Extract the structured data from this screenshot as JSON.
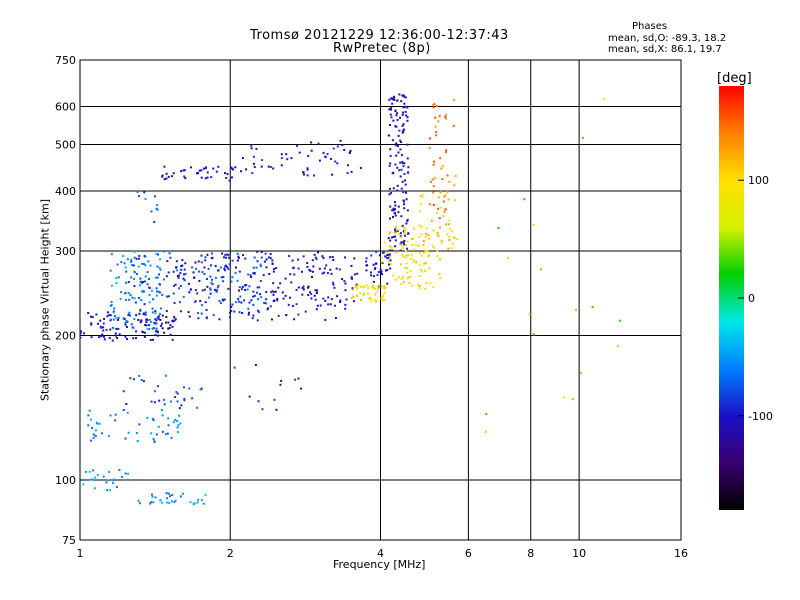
{
  "chart_data": {
    "type": "scatter",
    "title": "Tromsø 20121229 12:36:00-12:37:43",
    "subtitle": "RwPretec (8p)",
    "xlabel": "Frequency [MHz]",
    "ylabel": "Stationary phase Virtual Height [km]",
    "x_scale": "log",
    "y_scale": "log",
    "xlim": [
      1,
      16
    ],
    "ylim": [
      75,
      750
    ],
    "x_ticks": [
      1,
      2,
      4,
      6,
      8,
      10,
      16
    ],
    "y_ticks": [
      75,
      100,
      200,
      300,
      400,
      500,
      600,
      750
    ],
    "grid": true,
    "stats_title": "Phases",
    "stats_o": "mean, sd,O: -89.3, 18.2",
    "stats_x": "mean, sd,X:  86.1, 19.7",
    "colorbar": {
      "label": "[deg]",
      "range": [
        -180,
        180
      ],
      "ticks": [
        100,
        0,
        -100
      ],
      "colors": [
        "#000000",
        "#3a0070",
        "#1a10c8",
        "#0080ff",
        "#00e8e8",
        "#00d000",
        "#d8f000",
        "#ffe000",
        "#ff8000",
        "#ff0000"
      ]
    },
    "clusters": [
      {
        "x": [
          1.0,
          1.55
        ],
        "y": [
          195,
          225
        ],
        "phase": -110,
        "n": 110
      },
      {
        "x": [
          1.15,
          1.45
        ],
        "y": [
          205,
          300
        ],
        "phase": -55,
        "n": 90
      },
      {
        "x": [
          1.25,
          2.4
        ],
        "y": [
          220,
          300
        ],
        "phase": -80,
        "n": 160
      },
      {
        "x": [
          1.55,
          3.4
        ],
        "y": [
          215,
          300
        ],
        "phase": -105,
        "n": 150
      },
      {
        "x": [
          2.3,
          3.6
        ],
        "y": [
          230,
          295
        ],
        "phase": -105,
        "n": 70
      },
      {
        "x": [
          1.45,
          2.1
        ],
        "y": [
          420,
          450
        ],
        "phase": -110,
        "n": 40
      },
      {
        "x": [
          2.1,
          3.7
        ],
        "y": [
          430,
          510
        ],
        "phase": -100,
        "n": 55
      },
      {
        "x": [
          1.3,
          1.45
        ],
        "y": [
          340,
          400
        ],
        "phase": -70,
        "n": 10
      },
      {
        "x": [
          4.15,
          4.55
        ],
        "y": [
          300,
          640
        ],
        "phase": -110,
        "n": 150
      },
      {
        "x": [
          3.7,
          4.2
        ],
        "y": [
          250,
          300
        ],
        "phase": -100,
        "n": 40
      },
      {
        "x": [
          3.5,
          4.1
        ],
        "y": [
          235,
          255
        ],
        "phase": 100,
        "n": 45
      },
      {
        "x": [
          4.0,
          5.3
        ],
        "y": [
          250,
          340
        ],
        "phase": 100,
        "n": 80
      },
      {
        "x": [
          4.8,
          5.7
        ],
        "y": [
          300,
          400
        ],
        "phase": 110,
        "n": 40
      },
      {
        "x": [
          5.0,
          5.7
        ],
        "y": [
          340,
          620
        ],
        "phase": 140,
        "n": 45
      },
      {
        "x": [
          4.4,
          5.0
        ],
        "y": [
          270,
          330
        ],
        "phase": 60,
        "n": 20
      },
      {
        "x": [
          1.0,
          1.6
        ],
        "y": [
          120,
          140
        ],
        "phase": -60,
        "n": 50
      },
      {
        "x": [
          1.2,
          1.8
        ],
        "y": [
          140,
          165
        ],
        "phase": -80,
        "n": 30
      },
      {
        "x": [
          1.0,
          1.25
        ],
        "y": [
          95,
          105
        ],
        "phase": -50,
        "n": 25
      },
      {
        "x": [
          1.3,
          1.8
        ],
        "y": [
          89,
          94
        ],
        "phase": -55,
        "n": 30
      },
      {
        "x": [
          6.3,
          12.5
        ],
        "y": [
          110,
          680
        ],
        "phase": 40,
        "n": 18
      },
      {
        "x": [
          2.0,
          3.0
        ],
        "y": [
          130,
          180
        ],
        "phase": -95,
        "n": 12
      }
    ]
  }
}
